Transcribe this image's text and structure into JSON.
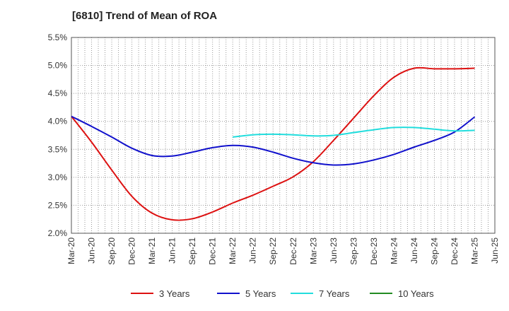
{
  "chart_data": {
    "type": "line",
    "title": "[6810]  Trend of Mean of ROA",
    "xlabel": "",
    "ylabel": "",
    "x_ticks": [
      "Mar-20",
      "Jun-20",
      "Sep-20",
      "Dec-20",
      "Mar-21",
      "Jun-21",
      "Sep-21",
      "Dec-21",
      "Mar-22",
      "Jun-22",
      "Sep-22",
      "Dec-22",
      "Mar-23",
      "Jun-23",
      "Sep-23",
      "Dec-23",
      "Mar-24",
      "Jun-24",
      "Sep-24",
      "Dec-24",
      "Mar-25",
      "Jun-25"
    ],
    "y_ticks": [
      "2.0%",
      "2.5%",
      "3.0%",
      "3.5%",
      "4.0%",
      "4.5%",
      "5.0%",
      "5.5%"
    ],
    "ylim": [
      2.0,
      5.5
    ],
    "grid": true,
    "legend_position": "bottom",
    "series": [
      {
        "name": "3 Years",
        "color": "#dd1111",
        "x": [
          "Mar-20",
          "Jun-20",
          "Sep-20",
          "Dec-20",
          "Mar-21",
          "Jun-21",
          "Sep-21",
          "Dec-21",
          "Mar-22",
          "Jun-22",
          "Sep-22",
          "Dec-22",
          "Mar-23",
          "Jun-23",
          "Sep-23",
          "Dec-23",
          "Mar-24",
          "Jun-24",
          "Sep-24",
          "Dec-24",
          "Mar-25"
        ],
        "values": [
          4.09,
          3.63,
          3.13,
          2.66,
          2.36,
          2.24,
          2.26,
          2.38,
          2.54,
          2.68,
          2.84,
          3.01,
          3.28,
          3.66,
          4.06,
          4.46,
          4.79,
          4.95,
          4.94,
          4.94,
          4.95
        ]
      },
      {
        "name": "5 Years",
        "color": "#1111cc",
        "x": [
          "Mar-20",
          "Jun-20",
          "Sep-20",
          "Dec-20",
          "Mar-21",
          "Jun-21",
          "Sep-21",
          "Dec-21",
          "Mar-22",
          "Jun-22",
          "Sep-22",
          "Dec-22",
          "Mar-23",
          "Jun-23",
          "Sep-23",
          "Dec-23",
          "Mar-24",
          "Jun-24",
          "Sep-24",
          "Dec-24",
          "Mar-25"
        ],
        "values": [
          4.09,
          3.91,
          3.72,
          3.52,
          3.39,
          3.38,
          3.45,
          3.53,
          3.57,
          3.54,
          3.45,
          3.34,
          3.26,
          3.22,
          3.24,
          3.31,
          3.41,
          3.54,
          3.66,
          3.81,
          4.08
        ]
      },
      {
        "name": "7 Years",
        "color": "#22dddd",
        "x": [
          "Mar-22",
          "Jun-22",
          "Sep-22",
          "Dec-22",
          "Mar-23",
          "Jun-23",
          "Sep-23",
          "Dec-23",
          "Mar-24",
          "Jun-24",
          "Sep-24",
          "Dec-24",
          "Mar-25"
        ],
        "values": [
          3.72,
          3.76,
          3.77,
          3.76,
          3.74,
          3.75,
          3.8,
          3.85,
          3.89,
          3.89,
          3.86,
          3.83,
          3.84
        ]
      },
      {
        "name": "10 Years",
        "color": "#228b22",
        "x": [],
        "values": []
      }
    ]
  }
}
